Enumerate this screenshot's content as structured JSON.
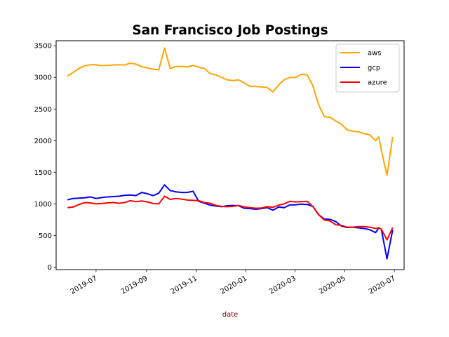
{
  "chart_data": {
    "type": "line",
    "title": "San Francisco Job Postings",
    "xlabel": "date",
    "ylabel": "",
    "xlim": [
      "2019-05-13",
      "2020-07-13"
    ],
    "ylim": [
      -40,
      3580
    ],
    "yticks": [
      0,
      500,
      1000,
      1500,
      2000,
      2500,
      3000,
      3500
    ],
    "xticks": [
      {
        "date": "2019-07-01",
        "label": "2019-07"
      },
      {
        "date": "2019-09-01",
        "label": "2019-09"
      },
      {
        "date": "2019-11-01",
        "label": "2019-11"
      },
      {
        "date": "2020-01-01",
        "label": "2020-01"
      },
      {
        "date": "2020-03-01",
        "label": "2020-03"
      },
      {
        "date": "2020-05-01",
        "label": "2020-05"
      },
      {
        "date": "2020-07-01",
        "label": "2020-07"
      }
    ],
    "xlabel_color": "#8b0000",
    "grid": false,
    "legend_position": "top-right",
    "x": [
      "2019-05-27",
      "2019-06-03",
      "2019-06-10",
      "2019-06-17",
      "2019-06-24",
      "2019-07-01",
      "2019-07-08",
      "2019-07-15",
      "2019-07-22",
      "2019-07-29",
      "2019-08-05",
      "2019-08-12",
      "2019-08-19",
      "2019-08-26",
      "2019-09-02",
      "2019-09-09",
      "2019-09-16",
      "2019-09-23",
      "2019-09-30",
      "2019-10-07",
      "2019-10-14",
      "2019-10-21",
      "2019-10-28",
      "2019-11-04",
      "2019-11-11",
      "2019-11-18",
      "2019-11-25",
      "2019-12-02",
      "2019-12-09",
      "2019-12-16",
      "2019-12-23",
      "2019-12-30",
      "2020-01-06",
      "2020-01-13",
      "2020-01-20",
      "2020-01-27",
      "2020-02-03",
      "2020-02-10",
      "2020-02-17",
      "2020-02-24",
      "2020-03-02",
      "2020-03-09",
      "2020-03-16",
      "2020-03-23",
      "2020-03-30",
      "2020-04-06",
      "2020-04-13",
      "2020-04-20",
      "2020-04-27",
      "2020-05-04",
      "2020-05-11",
      "2020-05-18",
      "2020-05-25",
      "2020-06-01",
      "2020-06-08",
      "2020-06-12",
      "2020-06-15",
      "2020-06-22",
      "2020-06-29"
    ],
    "series": [
      {
        "name": "aws",
        "color": "#ffa500",
        "values": [
          3020,
          3080,
          3140,
          3185,
          3200,
          3200,
          3185,
          3190,
          3195,
          3200,
          3195,
          3225,
          3210,
          3170,
          3150,
          3130,
          3120,
          3465,
          3140,
          3170,
          3175,
          3165,
          3190,
          3160,
          3140,
          3060,
          3040,
          3000,
          2960,
          2950,
          2960,
          2910,
          2860,
          2855,
          2850,
          2840,
          2770,
          2880,
          2965,
          3000,
          3000,
          3050,
          3040,
          2870,
          2570,
          2380,
          2370,
          2310,
          2260,
          2170,
          2150,
          2140,
          2110,
          2090,
          2000,
          2060,
          1850,
          1450,
          2060
        ]
      },
      {
        "name": "gcp",
        "color": "#0000ff",
        "values": [
          1065,
          1085,
          1090,
          1095,
          1110,
          1085,
          1100,
          1110,
          1115,
          1120,
          1135,
          1140,
          1130,
          1180,
          1160,
          1130,
          1170,
          1300,
          1210,
          1190,
          1180,
          1180,
          1200,
          1040,
          1010,
          980,
          965,
          955,
          970,
          975,
          970,
          930,
          925,
          915,
          925,
          940,
          900,
          950,
          940,
          985,
          985,
          995,
          990,
          960,
          830,
          760,
          755,
          720,
          650,
          625,
          630,
          620,
          610,
          590,
          545,
          620,
          600,
          130,
          590
        ]
      },
      {
        "name": "azure",
        "color": "#ff0000",
        "values": [
          940,
          950,
          990,
          1020,
          1015,
          1000,
          1005,
          1015,
          1020,
          1010,
          1020,
          1050,
          1035,
          1045,
          1030,
          1005,
          1000,
          1120,
          1070,
          1085,
          1075,
          1060,
          1055,
          1050,
          1020,
          1010,
          975,
          960,
          955,
          960,
          975,
          950,
          940,
          930,
          935,
          955,
          945,
          980,
          1000,
          1040,
          1030,
          1035,
          1040,
          960,
          830,
          745,
          730,
          670,
          660,
          630,
          630,
          640,
          640,
          630,
          610,
          620,
          600,
          430,
          625
        ]
      }
    ]
  }
}
